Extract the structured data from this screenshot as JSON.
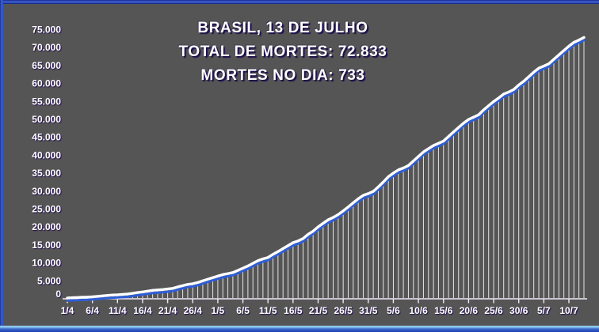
{
  "title": {
    "line1": "BRASIL, 13 DE JULHO",
    "line2": "TOTAL DE MORTES: 72.833",
    "line3": "MORTES NO DIA: 733"
  },
  "colors": {
    "background_purple": "#7F10C0",
    "line_white": "#FFFFFF",
    "line_shadow_blue": "#2E5ED8",
    "axis": "#F2EAF8",
    "frame_blue": "#3E68D4"
  },
  "chart_data": {
    "type": "line",
    "title": "BRASIL, 13 DE JULHO — TOTAL DE MORTES: 72.833 — MORTES NO DIA: 733",
    "xlabel": "",
    "ylabel": "",
    "ylim": [
      0,
      75000
    ],
    "ytick_step": 5000,
    "grid": "off",
    "legend": "none",
    "drop_lines": true,
    "line_color": "#FFFFFF",
    "shadow_color": "#2E5ED8",
    "axis_color": "#F2EAF8",
    "ytick_labels": [
      "0",
      "5.000",
      "10.000",
      "15.000",
      "20.000",
      "25.000",
      "30.000",
      "35.000",
      "40.000",
      "45.000",
      "50.000",
      "55.000",
      "60.000",
      "65.000",
      "70.000",
      "75.000"
    ],
    "xtick_labels": [
      "1/4",
      "6/4",
      "11/4",
      "16/4",
      "21/4",
      "26/4",
      "1/5",
      "6/5",
      "11/5",
      "16/5",
      "21/5",
      "26/5",
      "31/5",
      "5/6",
      "10/6",
      "15/6",
      "20/6",
      "25/6",
      "30/6",
      "5/7",
      "10/7"
    ],
    "x": [
      "1/4",
      "2/4",
      "3/4",
      "4/4",
      "5/4",
      "6/4",
      "7/4",
      "8/4",
      "9/4",
      "10/4",
      "11/4",
      "12/4",
      "13/4",
      "14/4",
      "15/4",
      "16/4",
      "17/4",
      "18/4",
      "19/4",
      "20/4",
      "21/4",
      "22/4",
      "23/4",
      "24/4",
      "25/4",
      "26/4",
      "27/4",
      "28/4",
      "29/4",
      "30/4",
      "1/5",
      "2/5",
      "3/5",
      "4/5",
      "5/5",
      "6/5",
      "7/5",
      "8/5",
      "9/5",
      "10/5",
      "11/5",
      "12/5",
      "13/5",
      "14/5",
      "15/5",
      "16/5",
      "17/5",
      "18/5",
      "19/5",
      "20/5",
      "21/5",
      "22/5",
      "23/5",
      "24/5",
      "25/5",
      "26/5",
      "27/5",
      "28/5",
      "29/5",
      "30/5",
      "31/5",
      "1/6",
      "2/6",
      "3/6",
      "4/6",
      "5/6",
      "6/6",
      "7/6",
      "8/6",
      "9/6",
      "10/6",
      "11/6",
      "12/6",
      "13/6",
      "14/6",
      "15/6",
      "16/6",
      "17/6",
      "18/6",
      "19/6",
      "20/6",
      "21/6",
      "22/6",
      "23/6",
      "24/6",
      "25/6",
      "26/6",
      "27/6",
      "28/6",
      "29/6",
      "30/6",
      "1/7",
      "2/7",
      "3/7",
      "4/7",
      "5/7",
      "6/7",
      "7/7",
      "8/7",
      "9/7",
      "10/7",
      "11/7",
      "12/7",
      "13/7"
    ],
    "values": [
      240,
      324,
      359,
      445,
      486,
      564,
      686,
      819,
      950,
      1057,
      1124,
      1223,
      1328,
      1532,
      1736,
      1924,
      2141,
      2354,
      2462,
      2575,
      2741,
      2906,
      3313,
      3670,
      4016,
      4205,
      4543,
      5017,
      5466,
      5901,
      6329,
      6750,
      7025,
      7321,
      7921,
      8536,
      9146,
      9897,
      10627,
      11123,
      11519,
      12400,
      13149,
      13993,
      14817,
      15633,
      16118,
      16792,
      17971,
      18859,
      20047,
      21048,
      22013,
      22666,
      23473,
      24512,
      25598,
      26754,
      27878,
      28834,
      29314,
      29937,
      31199,
      32548,
      34021,
      35026,
      35930,
      36455,
      37134,
      38406,
      39680,
      40919,
      41828,
      42720,
      43332,
      43959,
      45241,
      46510,
      47748,
      48954,
      49976,
      50617,
      51271,
      52645,
      53830,
      54971,
      55961,
      57070,
      57622,
      58314,
      59594,
      60632,
      61884,
      63174,
      64265,
      64867,
      65487,
      66741,
      67964,
      69184,
      70398,
      71469,
      72100,
      72833
    ]
  }
}
